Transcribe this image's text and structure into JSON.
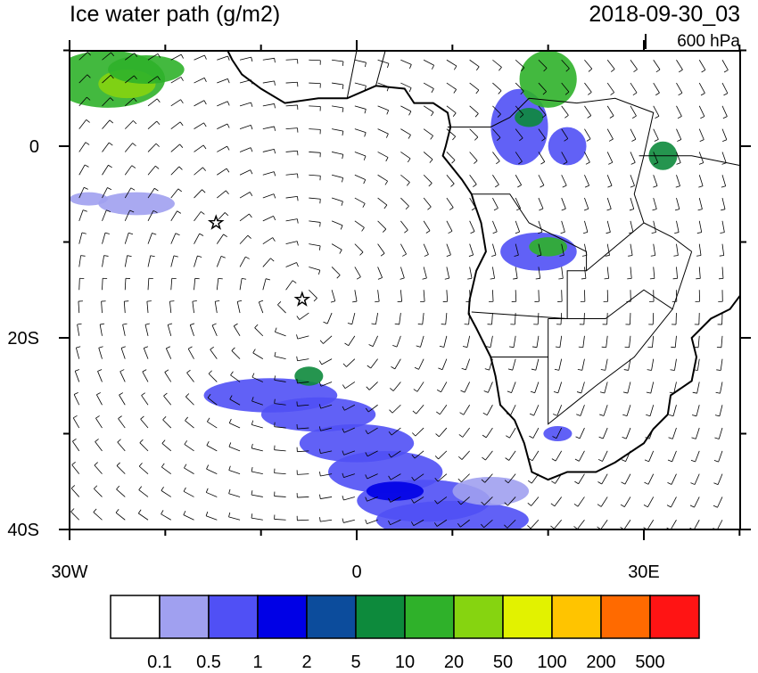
{
  "title": "Ice water path (g/m2)",
  "timestamp": "2018-09-30_03",
  "level": "600 hPa",
  "lat_labels": [
    "0",
    "20S",
    "40S"
  ],
  "lon_labels": [
    "30W",
    "0",
    "30E"
  ],
  "colorbar": {
    "colors": [
      "#ffffff",
      "#a0a0f0",
      "#5050f5",
      "#0000e6",
      "#0c4c9c",
      "#0d8a3c",
      "#2fb12a",
      "#86d410",
      "#e2f200",
      "#ffc400",
      "#ff6a00",
      "#ff1414"
    ],
    "labels": [
      "0.1",
      "0.5",
      "1",
      "2",
      "5",
      "10",
      "20",
      "50",
      "100",
      "200",
      "500"
    ]
  }
}
